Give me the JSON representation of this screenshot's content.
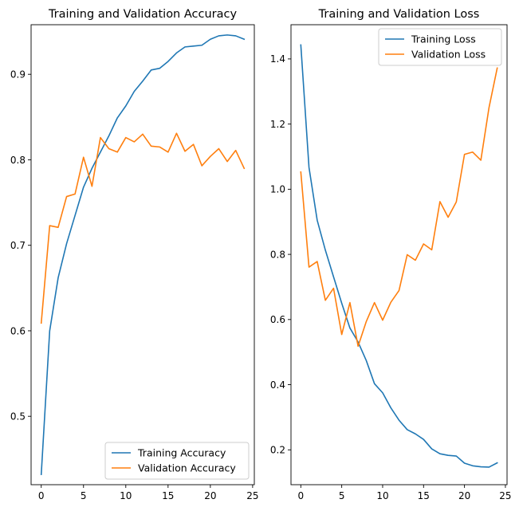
{
  "chart_data": [
    {
      "type": "line",
      "title": "Training and Validation Accuracy",
      "xlabel": "",
      "ylabel": "",
      "xlim": [
        -1.2,
        25.2
      ],
      "ylim": [
        0.42,
        0.958
      ],
      "xticks": [
        0,
        5,
        10,
        15,
        20,
        25
      ],
      "yticks": [
        0.5,
        0.6,
        0.7,
        0.8,
        0.9
      ],
      "ytick_labels": [
        "0.5",
        "0.6",
        "0.7",
        "0.8",
        "0.9"
      ],
      "grid": false,
      "legend_position": "lower right",
      "x": [
        0,
        1,
        2,
        3,
        4,
        5,
        6,
        7,
        8,
        9,
        10,
        11,
        12,
        13,
        14,
        15,
        16,
        17,
        18,
        19,
        20,
        21,
        22,
        23,
        24
      ],
      "series": [
        {
          "name": "Training Accuracy",
          "color": "#1f77b4",
          "values": [
            0.432,
            0.6,
            0.662,
            0.702,
            0.735,
            0.768,
            0.79,
            0.809,
            0.828,
            0.849,
            0.863,
            0.88,
            0.892,
            0.905,
            0.907,
            0.915,
            0.925,
            0.932,
            0.933,
            0.934,
            0.941,
            0.945,
            0.946,
            0.945,
            0.941
          ]
        },
        {
          "name": "Validation Accuracy",
          "color": "#ff7f0e",
          "values": [
            0.609,
            0.723,
            0.721,
            0.757,
            0.76,
            0.803,
            0.769,
            0.826,
            0.813,
            0.809,
            0.826,
            0.821,
            0.83,
            0.816,
            0.815,
            0.809,
            0.831,
            0.81,
            0.818,
            0.793,
            0.804,
            0.813,
            0.798,
            0.811,
            0.79
          ]
        }
      ]
    },
    {
      "type": "line",
      "title": "Training and Validation Loss",
      "xlabel": "",
      "ylabel": "",
      "xlim": [
        -1.2,
        25.2
      ],
      "ylim": [
        0.093,
        1.505
      ],
      "xticks": [
        0,
        5,
        10,
        15,
        20,
        25
      ],
      "yticks": [
        0.2,
        0.4,
        0.6,
        0.8,
        1.0,
        1.2,
        1.4
      ],
      "ytick_labels": [
        "0.2",
        "0.4",
        "0.6",
        "0.8",
        "1.0",
        "1.2",
        "1.4"
      ],
      "grid": false,
      "legend_position": "upper right",
      "x": [
        0,
        1,
        2,
        3,
        4,
        5,
        6,
        7,
        8,
        9,
        10,
        11,
        12,
        13,
        14,
        15,
        16,
        17,
        18,
        19,
        20,
        21,
        22,
        23,
        24
      ],
      "series": [
        {
          "name": "Training Loss",
          "color": "#1f77b4",
          "values": [
            1.443,
            1.067,
            0.905,
            0.813,
            0.731,
            0.65,
            0.574,
            0.531,
            0.474,
            0.403,
            0.375,
            0.329,
            0.291,
            0.262,
            0.249,
            0.232,
            0.203,
            0.188,
            0.183,
            0.181,
            0.159,
            0.151,
            0.148,
            0.147,
            0.16
          ]
        },
        {
          "name": "Validation Loss",
          "color": "#ff7f0e",
          "values": [
            1.053,
            0.761,
            0.778,
            0.659,
            0.696,
            0.554,
            0.652,
            0.518,
            0.594,
            0.652,
            0.598,
            0.653,
            0.689,
            0.799,
            0.782,
            0.832,
            0.814,
            0.962,
            0.914,
            0.961,
            1.107,
            1.114,
            1.089,
            1.251,
            1.372
          ]
        }
      ]
    }
  ]
}
